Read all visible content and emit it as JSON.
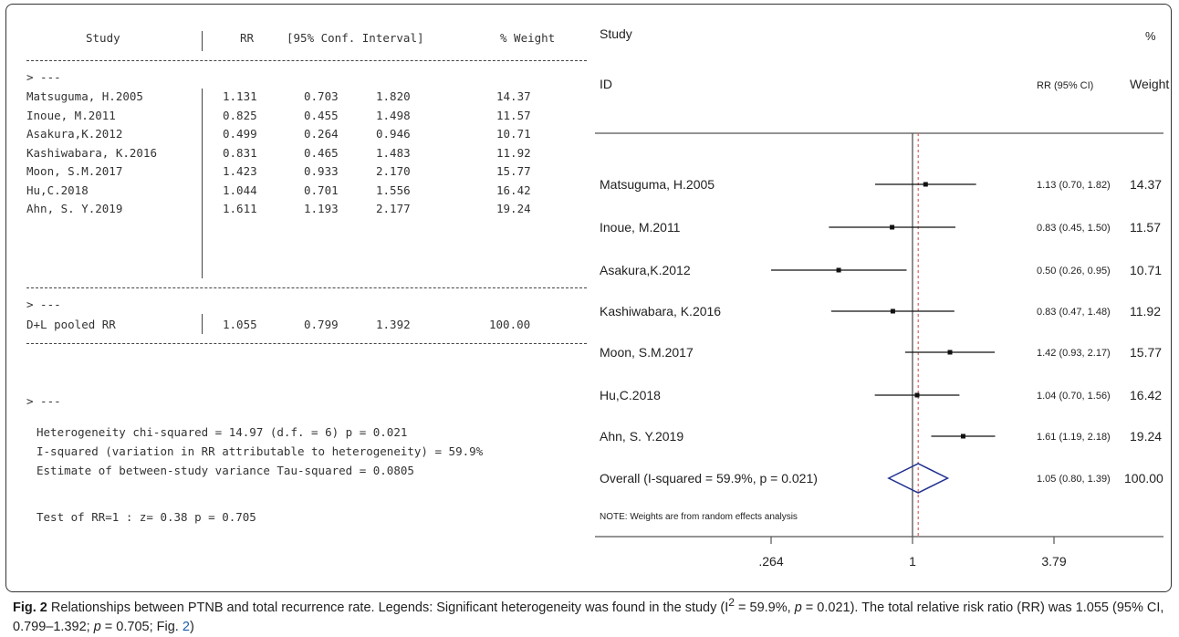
{
  "table": {
    "headers": {
      "study": "Study",
      "rr": "RR",
      "ci": "[95% Conf. Interval]",
      "weight": "% Weight"
    },
    "sep_marker": "> ---",
    "rows": [
      {
        "study": "Matsuguma, H.2005",
        "rr": "1.131",
        "lo": "0.703",
        "hi": "1.820",
        "w": "14.37"
      },
      {
        "study": "Inoue, M.2011",
        "rr": "0.825",
        "lo": "0.455",
        "hi": "1.498",
        "w": "11.57"
      },
      {
        "study": "Asakura,K.2012",
        "rr": "0.499",
        "lo": "0.264",
        "hi": "0.946",
        "w": "10.71"
      },
      {
        "study": "Kashiwabara, K.2016",
        "rr": "0.831",
        "lo": "0.465",
        "hi": "1.483",
        "w": "11.92"
      },
      {
        "study": "Moon, S.M.2017",
        "rr": "1.423",
        "lo": "0.933",
        "hi": "2.170",
        "w": "15.77"
      },
      {
        "study": "Hu,C.2018",
        "rr": "1.044",
        "lo": "0.701",
        "hi": "1.556",
        "w": "16.42"
      },
      {
        "study": "Ahn, S. Y.2019",
        "rr": "1.611",
        "lo": "1.193",
        "hi": "2.177",
        "w": "19.24"
      }
    ],
    "pooled": {
      "study": "D+L pooled RR",
      "rr": "1.055",
      "lo": "0.799",
      "hi": "1.392",
      "w": "100.00"
    },
    "stats": [
      "Heterogeneity chi-squared = 14.97 (d.f. = 6) p = 0.021",
      "I-squared (variation in RR attributable to heterogeneity) = 59.9%",
      "Estimate of between-study variance Tau-squared = 0.0805"
    ],
    "test": "Test of RR=1 : z= 0.38 p = 0.705"
  },
  "chart_data": {
    "type": "forest",
    "header": {
      "study": "Study",
      "id": "ID",
      "rrci": "RR (95% CI)",
      "pct": "%",
      "weight": "Weight"
    },
    "studies": [
      {
        "name": "Matsuguma, H.2005",
        "rr": 1.131,
        "lo": 0.703,
        "hi": 1.82,
        "label": "1.13 (0.70, 1.82)",
        "weight": "14.37"
      },
      {
        "name": "Inoue, M.2011",
        "rr": 0.825,
        "lo": 0.455,
        "hi": 1.498,
        "label": "0.83 (0.45, 1.50)",
        "weight": "11.57"
      },
      {
        "name": "Asakura,K.2012",
        "rr": 0.499,
        "lo": 0.264,
        "hi": 0.946,
        "label": "0.50 (0.26, 0.95)",
        "weight": "10.71"
      },
      {
        "name": "Kashiwabara, K.2016",
        "rr": 0.831,
        "lo": 0.465,
        "hi": 1.483,
        "label": "0.83 (0.47, 1.48)",
        "weight": "11.92"
      },
      {
        "name": "Moon, S.M.2017",
        "rr": 1.423,
        "lo": 0.933,
        "hi": 2.17,
        "label": "1.42 (0.93, 2.17)",
        "weight": "15.77"
      },
      {
        "name": "Hu,C.2018",
        "rr": 1.044,
        "lo": 0.701,
        "hi": 1.556,
        "label": "1.04 (0.70, 1.56)",
        "weight": "16.42"
      },
      {
        "name": "Ahn, S. Y.2019",
        "rr": 1.611,
        "lo": 1.193,
        "hi": 2.177,
        "label": "1.61 (1.19, 2.18)",
        "weight": "19.24"
      }
    ],
    "overall": {
      "name": "Overall  (I-squared = 59.9%, p = 0.021)",
      "rr": 1.055,
      "lo": 0.799,
      "hi": 1.392,
      "label": "1.05 (0.80, 1.39)",
      "weight": "100.00"
    },
    "note": "NOTE: Weights are from random effects analysis",
    "x_scale": "log",
    "xlim": [
      0.264,
      3.79
    ],
    "ticks": [
      {
        "value": 0.264,
        "label": ".264"
      },
      {
        "value": 1,
        "label": "1"
      },
      {
        "value": 3.79,
        "label": "3.79"
      }
    ],
    "null_line": 1,
    "colors": {
      "diamond": "#1f2f8f",
      "overall_line": "#d9534f",
      "markers": "#111111"
    }
  },
  "caption": {
    "fig": "Fig. 2",
    "text": " Relationships between PTNB and total recurrence rate. Legends: Significant heterogeneity was found in the study (I",
    "sup": "2",
    "text2": " = 59.9%, ",
    "p_italic": "p",
    "text3": " = 0.021). The total relative risk ratio (RR) was 1.055 (95% CI, 0.799–1.392; ",
    "p_italic2": "p",
    "text4": " = 0.705; Fig. ",
    "fig_ref": "2",
    "text5": ")"
  }
}
